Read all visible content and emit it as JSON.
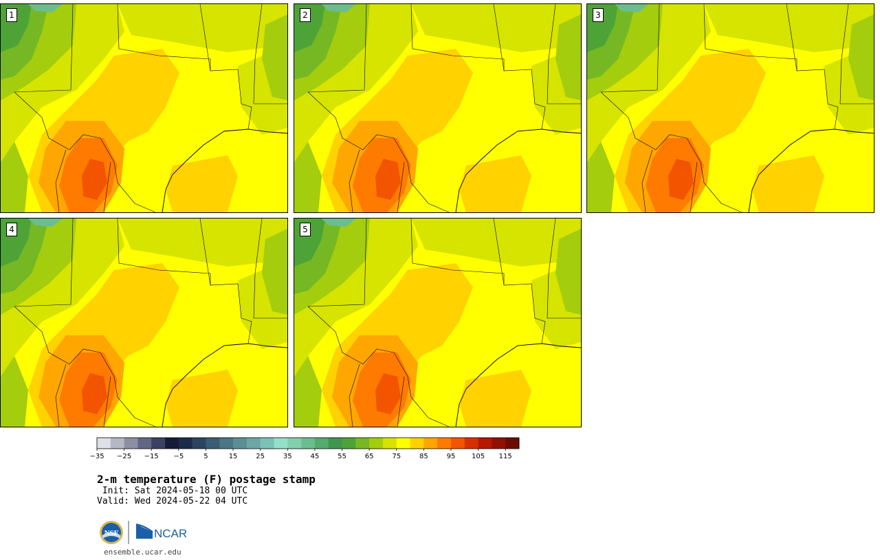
{
  "panels": [
    {
      "label": "1"
    },
    {
      "label": "2"
    },
    {
      "label": "3"
    },
    {
      "label": "4"
    },
    {
      "label": "5"
    }
  ],
  "colorbar": {
    "colors": [
      "#dfe0e6",
      "#b5b7c3",
      "#8c8fa3",
      "#626784",
      "#3a4163",
      "#141c38",
      "#1d2b4a",
      "#2b4560",
      "#395d72",
      "#4a7685",
      "#5a8f96",
      "#6aa8a6",
      "#7bc1b6",
      "#93e0cb",
      "#80d0ad",
      "#6bbd8e",
      "#55aa6e",
      "#3f9650",
      "#4ea337",
      "#75b823",
      "#a4cd0e",
      "#d6e400",
      "#ffff00",
      "#ffd200",
      "#ffa600",
      "#ff7b00",
      "#f25400",
      "#d63000",
      "#b41800",
      "#921000",
      "#6c0c00"
    ],
    "tick_labels": [
      "−35",
      "−25",
      "−15",
      "−5",
      "5",
      "15",
      "25",
      "35",
      "45",
      "55",
      "65",
      "75",
      "85",
      "95",
      "105",
      "115"
    ],
    "units": "F"
  },
  "title": "2-m temperature (F) postage stamp",
  "init": " Init: Sat 2024-05-18 00 UTC",
  "valid": "Valid: Wed 2024-05-22 04 UTC",
  "logos": {
    "nsf": "NSF",
    "ncar": "NCAR"
  },
  "site": "ensemble.ucar.edu"
}
